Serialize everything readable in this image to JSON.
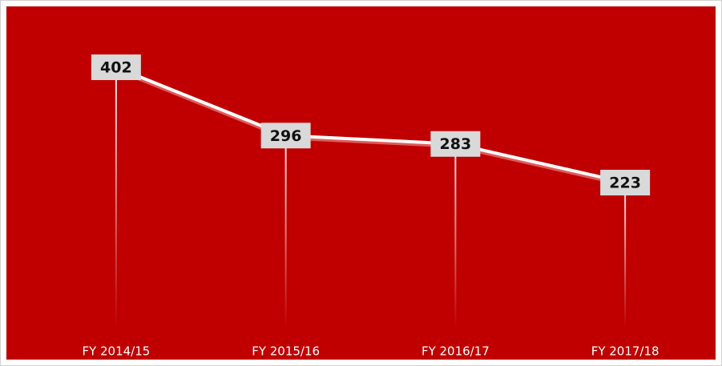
{
  "chart_data": {
    "type": "line",
    "categories": [
      "FY 2014/15",
      "FY 2015/16",
      "FY 2016/17",
      "FY 2017/18"
    ],
    "values": [
      402,
      296,
      283,
      223
    ],
    "color": "#ffffff",
    "background": "#c00000"
  }
}
